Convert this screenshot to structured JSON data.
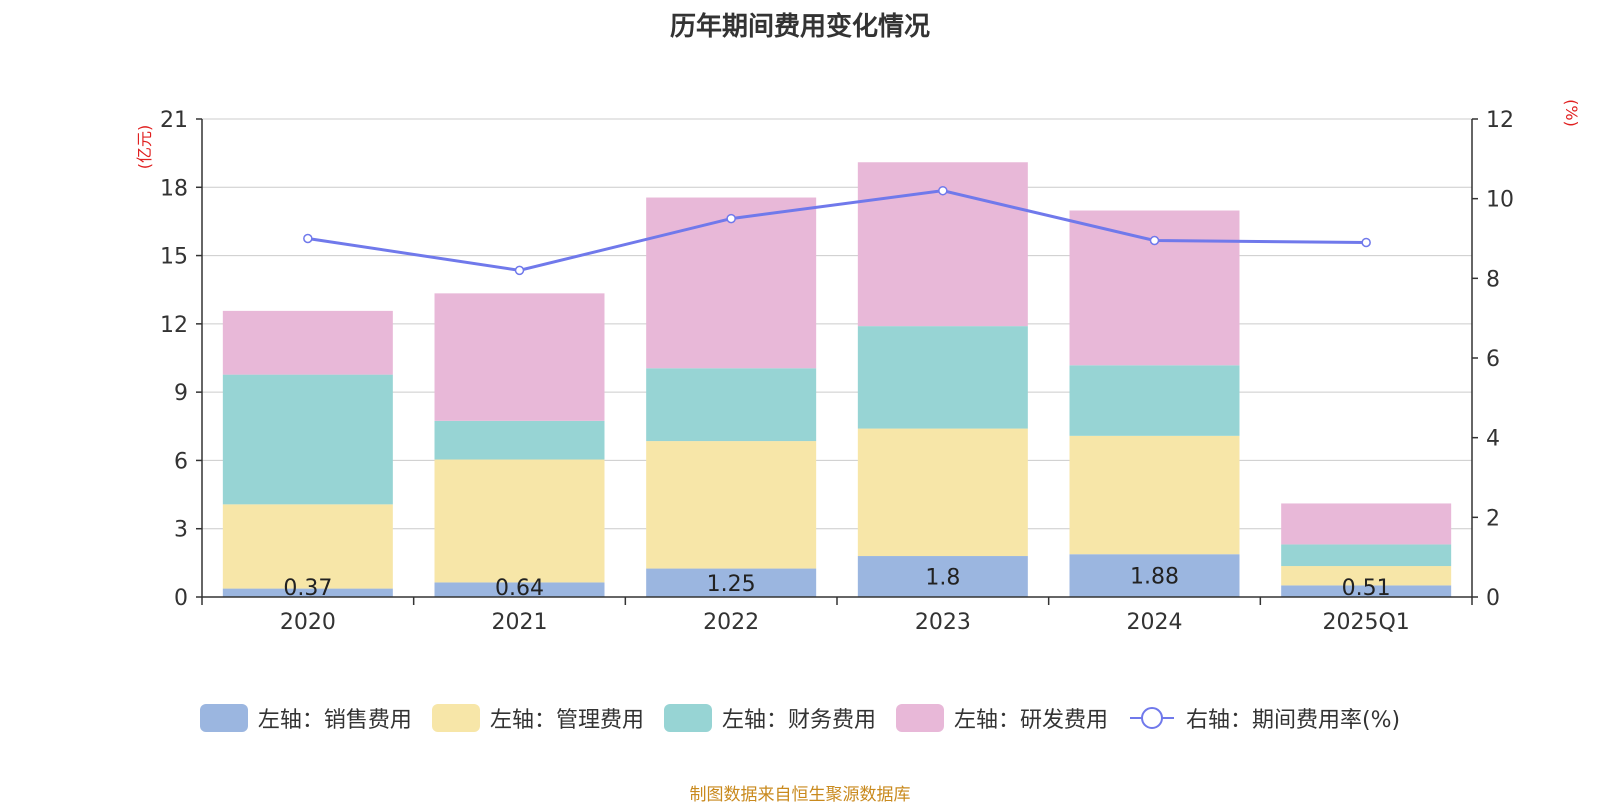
{
  "title": "历年期间费用变化情况",
  "footer": "制图数据来自恒生聚源数据库",
  "chart_data": {
    "type": "bar",
    "stacked": true,
    "categories": [
      "2020",
      "2021",
      "2022",
      "2023",
      "2024",
      "2025Q1"
    ],
    "y_left_label": "(亿元)",
    "y_right_label": "(%)",
    "y_left_ticks": [
      "0",
      "3",
      "6",
      "9",
      "12",
      "15",
      "18",
      "21"
    ],
    "y_right_ticks": [
      "0",
      "2",
      "4",
      "6",
      "8",
      "10",
      "12"
    ],
    "ylim_left": [
      0,
      21
    ],
    "ylim_right": [
      0,
      12
    ],
    "grid": true,
    "legend_position": "bottom",
    "series": [
      {
        "name": "左轴：销售费用",
        "axis": "left",
        "color": "#9bb6e0",
        "values": [
          0.37,
          0.64,
          1.25,
          1.8,
          1.88,
          0.51
        ],
        "labels": [
          "0.37",
          "0.64",
          "1.25",
          "1.8",
          "1.88",
          "0.51"
        ]
      },
      {
        "name": "左轴：管理费用",
        "axis": "left",
        "color": "#f7e6a8",
        "values": [
          3.7,
          5.4,
          5.6,
          5.6,
          5.2,
          0.85
        ]
      },
      {
        "name": "左轴：财务费用",
        "axis": "left",
        "color": "#97d4d4",
        "values": [
          5.7,
          1.7,
          3.2,
          4.5,
          3.1,
          0.95
        ]
      },
      {
        "name": "左轴：研发费用",
        "axis": "left",
        "color": "#e8b8d8",
        "values": [
          2.8,
          5.6,
          7.5,
          7.2,
          6.8,
          1.8
        ]
      },
      {
        "name": "右轴：期间费用率(%)",
        "axis": "right",
        "type": "line",
        "color": "#7079eb",
        "values": [
          9.0,
          8.2,
          9.5,
          10.2,
          8.95,
          8.9
        ]
      }
    ]
  }
}
